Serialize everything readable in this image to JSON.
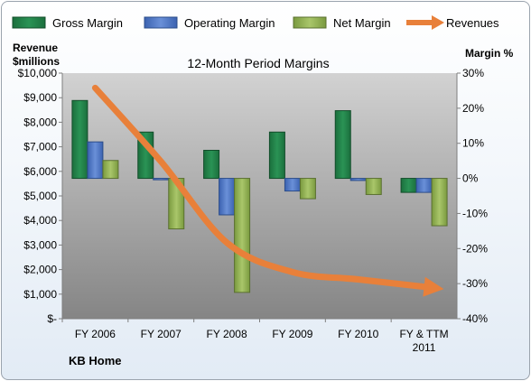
{
  "chart_data": {
    "type": "bar",
    "title": "12-Month Period Margins",
    "company": "KB Home",
    "categories": [
      "FY 2006",
      "FY 2007",
      "FY 2008",
      "FY 2009",
      "FY 2010",
      "FY & TTM 2011"
    ],
    "y_left": {
      "label": [
        "Revenue",
        "$millions"
      ],
      "min": 0,
      "max": 10000,
      "step": 1000,
      "tick_labels": [
        "$-",
        "$1,000",
        "$2,000",
        "$3,000",
        "$4,000",
        "$5,000",
        "$6,000",
        "$7,000",
        "$8,000",
        "$9,000",
        "$10,000"
      ]
    },
    "y_right": {
      "label": "Margin %",
      "min": -40,
      "max": 30,
      "step": 10,
      "tick_labels": [
        "-40%",
        "-30%",
        "-20%",
        "-10%",
        "0%",
        "10%",
        "20%",
        "30%"
      ]
    },
    "series": [
      {
        "name": "Gross Margin",
        "axis": "right",
        "kind": "bar",
        "color": "#1e7d45",
        "values": [
          22.2,
          13.2,
          8.0,
          13.2,
          19.3,
          -4.0
        ]
      },
      {
        "name": "Operating Margin",
        "axis": "right",
        "kind": "bar",
        "color": "#4a73c4",
        "values": [
          10.4,
          -0.4,
          -10.4,
          -3.6,
          -0.6,
          -4.0
        ]
      },
      {
        "name": "Net Margin",
        "axis": "right",
        "kind": "bar",
        "color": "#8fb04e",
        "values": [
          5.1,
          -14.4,
          -32.5,
          -5.8,
          -4.6,
          -13.5
        ]
      },
      {
        "name": "Revenues",
        "axis": "left",
        "kind": "line",
        "color": "#e8803a",
        "values": [
          9400,
          6400,
          3100,
          1900,
          1600,
          1300
        ]
      }
    ],
    "legend_position": "top",
    "grid": false
  }
}
